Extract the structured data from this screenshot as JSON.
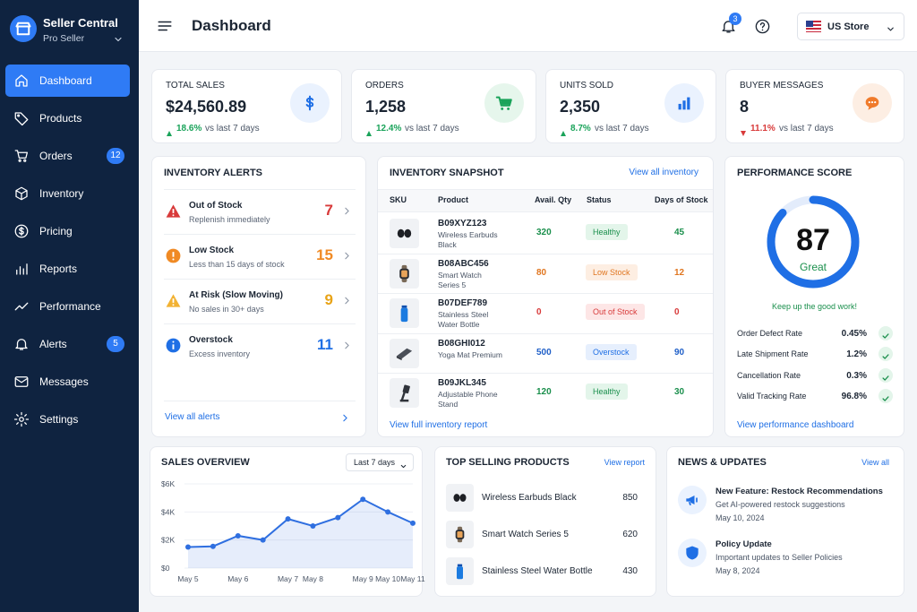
{
  "sidebar": {
    "title": "Seller Central",
    "subtitle": "Pro Seller",
    "nav": [
      {
        "label": "Dashboard"
      },
      {
        "label": "Products"
      },
      {
        "label": "Orders",
        "badge": 12
      },
      {
        "label": "Inventory"
      },
      {
        "label": "Pricing"
      },
      {
        "label": "Reports"
      },
      {
        "label": "Performance"
      },
      {
        "label": "Alerts",
        "badge": 5
      },
      {
        "label": "Messages"
      },
      {
        "label": "Settings"
      }
    ]
  },
  "header": {
    "title": "Dashboard",
    "notifications": 3,
    "store": "US Store"
  },
  "kpis": [
    {
      "label": "TOTAL SALES",
      "value": "$24,560.89",
      "change": "18.6%",
      "note": "vs last 7 days"
    },
    {
      "label": "ORDERS",
      "value": "1,258",
      "change": "12.4%",
      "note": "vs last 7 days"
    },
    {
      "label": "UNITS SOLD",
      "value": "2,350",
      "change": "8.7%",
      "note": "vs last 7 days"
    },
    {
      "label": "BUYER MESSAGES",
      "value": "8",
      "change": "11.1%",
      "note": "vs last 7 days"
    }
  ],
  "inventory_alerts": {
    "title": "INVENTORY ALERTS",
    "items": [
      {
        "title": "Out of Stock",
        "subtitle": "Replenish immediately",
        "count": 7
      },
      {
        "title": "Low Stock",
        "subtitle": "Less than 15 days of stock",
        "count": 15
      },
      {
        "title": "At Risk (Slow Moving)",
        "subtitle": "No sales in 30+ days",
        "count": 9
      },
      {
        "title": "Overstock",
        "subtitle": "Excess inventory",
        "count": 11
      }
    ],
    "footer": "View all alerts"
  },
  "inventory_snapshot": {
    "title": "INVENTORY SNAPSHOT",
    "link": "View all inventory",
    "columns": [
      "SKU",
      "Product",
      "Avail. Qty",
      "Status",
      "Days of Stock"
    ],
    "rows": [
      {
        "sku": "B09XYZ123",
        "product": "Wireless Earbuds Black",
        "qty": 320,
        "status": "Healthy",
        "days": 45
      },
      {
        "sku": "B08ABC456",
        "product": "Smart Watch Series 5",
        "qty": 80,
        "status": "Low Stock",
        "days": 12
      },
      {
        "sku": "B07DEF789",
        "product": "Stainless Steel Water Bottle",
        "qty": 0,
        "status": "Out of Stock",
        "days": 0
      },
      {
        "sku": "B08GHI012",
        "product": "Yoga Mat Premium",
        "qty": 500,
        "status": "Overstock",
        "days": 90
      },
      {
        "sku": "B09JKL345",
        "product": "Adjustable Phone Stand",
        "qty": 120,
        "status": "Healthy",
        "days": 30
      }
    ],
    "footer": "View full inventory report"
  },
  "performance": {
    "title": "PERFORMANCE SCORE",
    "score": 87,
    "grade": "Great",
    "message": "Keep up the good work!",
    "metrics": [
      {
        "label": "Order Defect Rate",
        "value": "0.45%"
      },
      {
        "label": "Late Shipment Rate",
        "value": "1.2%"
      },
      {
        "label": "Cancellation Rate",
        "value": "0.3%"
      },
      {
        "label": "Valid Tracking Rate",
        "value": "96.8%"
      }
    ],
    "link": "View performance dashboard"
  },
  "sales_overview": {
    "title": "SALES OVERVIEW",
    "range": "Last 7 days",
    "chart": {
      "type": "line",
      "categories": [
        "May 5",
        null,
        "May 6",
        null,
        "May 7",
        "May 8",
        null,
        "May 9",
        "May 10",
        "May 11"
      ],
      "values": [
        1500,
        1550,
        2300,
        2000,
        3500,
        3000,
        3600,
        4900,
        4000,
        3200
      ],
      "color": "#2f6fe0",
      "ylim": [
        0,
        6000
      ],
      "yticks": [
        {
          "value": 0,
          "label": "$0"
        },
        {
          "value": 2000,
          "label": "$2K"
        },
        {
          "value": 4000,
          "label": "$4K"
        },
        {
          "value": 6000,
          "label": "$6K"
        }
      ],
      "grid": true
    }
  },
  "top_selling": {
    "title": "TOP SELLING PRODUCTS",
    "link": "View report",
    "items": [
      {
        "name": "Wireless Earbuds Black",
        "units": 850
      },
      {
        "name": "Smart Watch Series 5",
        "units": 620
      },
      {
        "name": "Stainless Steel Water Bottle",
        "units": 430
      }
    ]
  },
  "news": {
    "title": "NEWS & UPDATES",
    "link": "View all",
    "items": [
      {
        "title": "New Feature: Restock Recommendations",
        "desc": "Get AI-powered restock suggestions",
        "date": "May 10, 2024"
      },
      {
        "title": "Policy Update",
        "desc": "Important updates to Seller Policies",
        "date": "May 8, 2024"
      }
    ]
  }
}
